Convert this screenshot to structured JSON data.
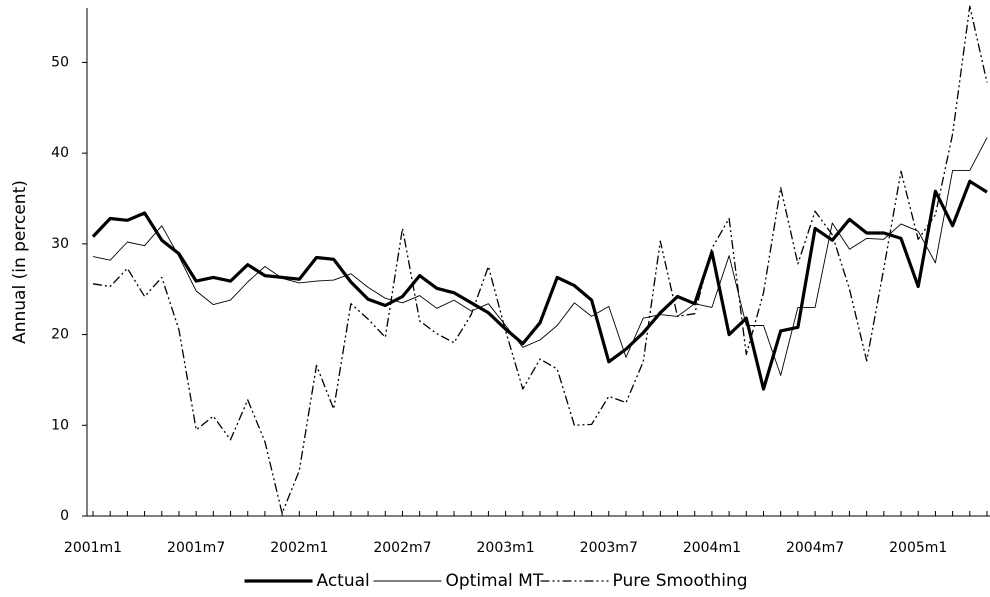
{
  "chart_data": {
    "type": "line",
    "ylabel": "Annual (in percent)",
    "categories": [
      "2001m1",
      null,
      null,
      null,
      null,
      null,
      "2001m7",
      null,
      null,
      null,
      null,
      null,
      "2002m1",
      null,
      null,
      null,
      null,
      null,
      "2002m7",
      null,
      null,
      null,
      null,
      null,
      "2003m1",
      null,
      null,
      null,
      null,
      null,
      "2003m7",
      null,
      null,
      null,
      null,
      null,
      "2004m1",
      null,
      null,
      null,
      null,
      null,
      "2004m7",
      null,
      null,
      null,
      null,
      null,
      "2005m1",
      null,
      null,
      null,
      null
    ],
    "ylim": [
      0,
      56
    ],
    "yticks": [
      0,
      10,
      20,
      30,
      40,
      50
    ],
    "grid": false,
    "legend": "bottom",
    "series": [
      {
        "name": "Actual",
        "color": "#000000",
        "line_width": 3.2,
        "dash": "none",
        "values": [
          30.8,
          32.8,
          32.6,
          33.4,
          30.4,
          28.9,
          25.9,
          26.3,
          25.9,
          27.7,
          26.5,
          26.3,
          26.1,
          28.5,
          28.3,
          25.8,
          23.9,
          23.2,
          24.2,
          26.5,
          25.1,
          24.6,
          23.5,
          22.4,
          20.6,
          19.0,
          21.3,
          26.3,
          25.4,
          23.8,
          17.0,
          18.4,
          20.2,
          22.4,
          24.2,
          23.4,
          29.1,
          20.0,
          21.8,
          14.0,
          20.4,
          20.8,
          31.7,
          30.4,
          32.7,
          31.2,
          31.2,
          30.6,
          25.3,
          35.8,
          32.0,
          36.9,
          35.7
        ]
      },
      {
        "name": "Optimal MT",
        "color": "#000000",
        "line_width": 0.9,
        "dash": "none",
        "values": [
          28.6,
          28.2,
          30.2,
          29.8,
          32.0,
          28.6,
          24.8,
          23.3,
          23.8,
          25.8,
          27.5,
          26.2,
          25.7,
          25.9,
          26.0,
          26.7,
          25.2,
          24.0,
          23.5,
          24.3,
          22.9,
          23.8,
          22.6,
          23.4,
          21.0,
          18.6,
          19.4,
          21.0,
          23.5,
          22.0,
          23.1,
          17.5,
          21.8,
          22.2,
          22.0,
          23.4,
          23.0,
          28.7,
          21.0,
          21.0,
          15.5,
          23.0,
          23.0,
          32.3,
          29.4,
          30.6,
          30.5,
          32.2,
          31.4,
          27.9,
          38.1,
          38.1,
          41.7
        ]
      },
      {
        "name": "Pure Smoothing",
        "color": "#000000",
        "line_width": 1.3,
        "dash": "9 3 2 3 2 3",
        "values": [
          25.6,
          25.3,
          27.3,
          24.2,
          26.3,
          20.5,
          9.5,
          11.0,
          8.4,
          12.8,
          8.2,
          0.3,
          5.0,
          16.6,
          11.8,
          23.4,
          21.7,
          19.7,
          31.7,
          21.5,
          20.1,
          19.1,
          22.2,
          27.5,
          20.4,
          14.0,
          17.3,
          16.2,
          10.0,
          10.1,
          13.2,
          12.5,
          17.0,
          30.3,
          22.0,
          22.3,
          29.5,
          32.8,
          17.8,
          24.6,
          36.2,
          27.8,
          33.6,
          31.0,
          25.0,
          17.1,
          27.3,
          38.0,
          30.5,
          33.2,
          42.1,
          56.2,
          47.8
        ]
      }
    ]
  }
}
